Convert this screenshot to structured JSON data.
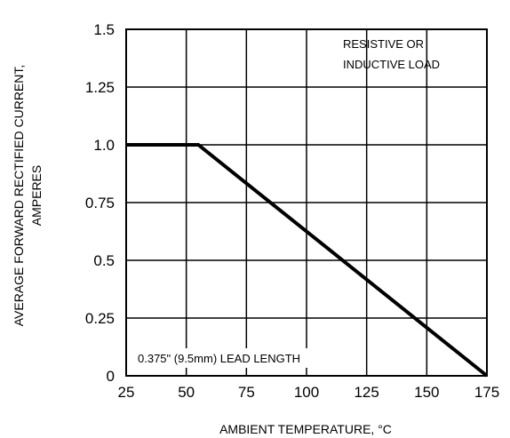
{
  "chart_data": {
    "type": "line",
    "xlabel": "AMBIENT TEMPERATURE, °C",
    "ylabel_lines": [
      "AVERAGE FORWARD RECTIFIED CURRENT,",
      "AMPERES"
    ],
    "xlim": [
      25,
      175
    ],
    "ylim": [
      0,
      1.5
    ],
    "x_ticks": [
      25,
      50,
      75,
      100,
      125,
      150,
      175
    ],
    "y_ticks": [
      0,
      0.25,
      0.5,
      0.75,
      1.0,
      1.25,
      1.5
    ],
    "x_tick_labels": [
      "25",
      "50",
      "75",
      "100",
      "125",
      "150",
      "175"
    ],
    "y_tick_labels": [
      "0",
      "0.25",
      "0.5",
      "0.75",
      "1.0",
      "1.25",
      "1.5"
    ],
    "grid": true,
    "series": [
      {
        "x": [
          25,
          55,
          175
        ],
        "y": [
          1.0,
          1.0,
          0
        ]
      }
    ],
    "annotations": [
      {
        "lines": [
          "RESISTIVE OR",
          "INDUCTIVE LOAD"
        ],
        "position": "top-right"
      },
      {
        "lines": [
          "0.375\" (9.5mm) LEAD LENGTH"
        ],
        "position": "bottom-left"
      }
    ]
  }
}
